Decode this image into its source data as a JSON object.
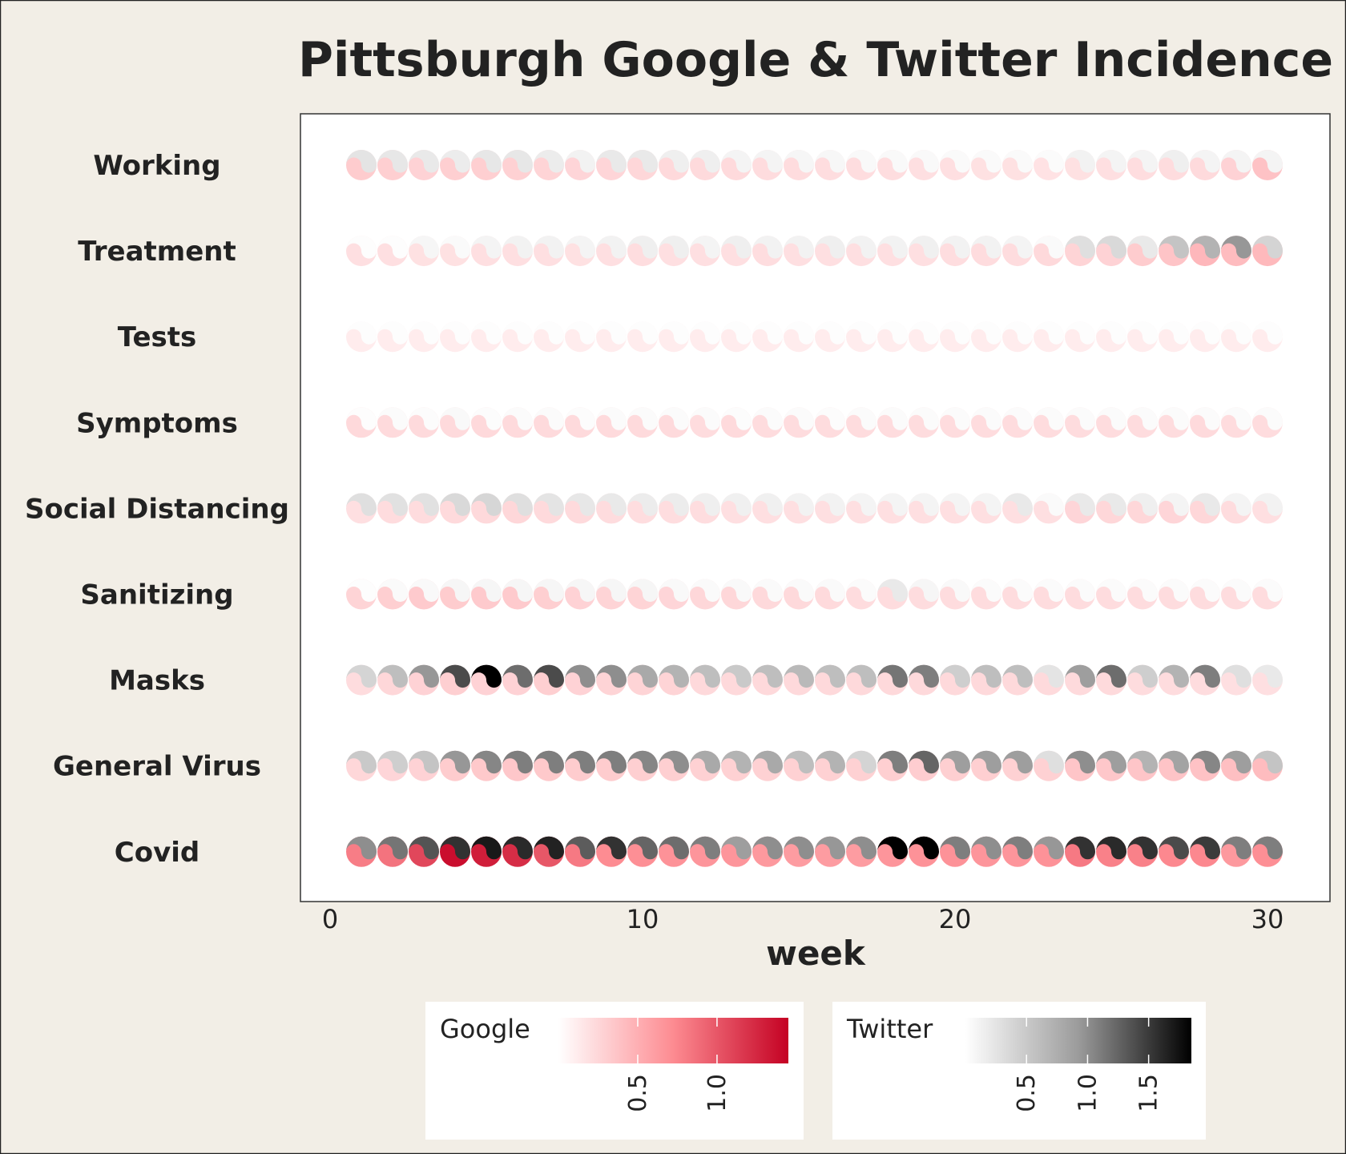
{
  "chart_data": {
    "type": "heatmap",
    "title": "Pittsburgh Google & Twitter Incidence",
    "xlabel": "week",
    "ylabel": "",
    "xlim": [
      0,
      32
    ],
    "x_ticks": [
      0,
      10,
      20,
      30
    ],
    "weeks": [
      1,
      2,
      3,
      4,
      5,
      6,
      7,
      8,
      9,
      10,
      11,
      12,
      13,
      14,
      15,
      16,
      17,
      18,
      19,
      20,
      21,
      22,
      23,
      24,
      25,
      26,
      27,
      28,
      29,
      30
    ],
    "categories": [
      "Working",
      "Treatment",
      "Tests",
      "Symptoms",
      "Social Distancing",
      "Sanitizing",
      "Masks",
      "General Virus",
      "Covid"
    ],
    "series": [
      {
        "name": "Google",
        "colors": [
          "#ffffff",
          "#fd8b91",
          "#c40123"
        ],
        "range": [
          0,
          1.45
        ],
        "ticks": [
          0.5,
          1.0
        ],
        "tick_labels": [
          "0.5",
          "1.0"
        ],
        "values": [
          [
            0.32,
            0.3,
            0.28,
            0.3,
            0.3,
            0.29,
            0.27,
            0.26,
            0.26,
            0.25,
            0.24,
            0.23,
            0.23,
            0.22,
            0.22,
            0.21,
            0.21,
            0.21,
            0.2,
            0.2,
            0.19,
            0.19,
            0.18,
            0.19,
            0.2,
            0.21,
            0.22,
            0.23,
            0.28,
            0.38
          ],
          [
            0.2,
            0.2,
            0.19,
            0.19,
            0.2,
            0.2,
            0.2,
            0.19,
            0.2,
            0.21,
            0.2,
            0.2,
            0.2,
            0.21,
            0.2,
            0.2,
            0.2,
            0.2,
            0.2,
            0.21,
            0.22,
            0.22,
            0.24,
            0.27,
            0.28,
            0.32,
            0.37,
            0.45,
            0.42,
            0.44
          ],
          [
            0.12,
            0.12,
            0.12,
            0.12,
            0.12,
            0.12,
            0.12,
            0.12,
            0.12,
            0.12,
            0.12,
            0.12,
            0.12,
            0.12,
            0.12,
            0.12,
            0.12,
            0.12,
            0.12,
            0.12,
            0.12,
            0.12,
            0.12,
            0.12,
            0.12,
            0.12,
            0.12,
            0.12,
            0.12,
            0.12
          ],
          [
            0.24,
            0.23,
            0.23,
            0.23,
            0.24,
            0.23,
            0.23,
            0.23,
            0.23,
            0.23,
            0.23,
            0.22,
            0.23,
            0.22,
            0.22,
            0.22,
            0.22,
            0.22,
            0.22,
            0.22,
            0.22,
            0.22,
            0.22,
            0.22,
            0.22,
            0.22,
            0.22,
            0.23,
            0.22,
            0.22
          ],
          [
            0.2,
            0.22,
            0.22,
            0.23,
            0.24,
            0.25,
            0.23,
            0.23,
            0.22,
            0.21,
            0.21,
            0.21,
            0.2,
            0.2,
            0.2,
            0.2,
            0.2,
            0.2,
            0.2,
            0.2,
            0.2,
            0.2,
            0.2,
            0.26,
            0.25,
            0.25,
            0.26,
            0.25,
            0.22,
            0.2
          ],
          [
            0.27,
            0.3,
            0.33,
            0.32,
            0.33,
            0.33,
            0.3,
            0.28,
            0.27,
            0.27,
            0.26,
            0.25,
            0.25,
            0.24,
            0.24,
            0.23,
            0.22,
            0.22,
            0.22,
            0.22,
            0.22,
            0.22,
            0.22,
            0.22,
            0.22,
            0.22,
            0.22,
            0.22,
            0.22,
            0.22
          ],
          [
            0.22,
            0.25,
            0.28,
            0.3,
            0.28,
            0.28,
            0.3,
            0.28,
            0.27,
            0.27,
            0.27,
            0.24,
            0.24,
            0.24,
            0.24,
            0.24,
            0.24,
            0.24,
            0.24,
            0.24,
            0.24,
            0.24,
            0.23,
            0.23,
            0.23,
            0.22,
            0.22,
            0.22,
            0.2,
            0.2
          ],
          [
            0.25,
            0.26,
            0.28,
            0.32,
            0.34,
            0.35,
            0.34,
            0.32,
            0.32,
            0.3,
            0.3,
            0.29,
            0.29,
            0.29,
            0.29,
            0.29,
            0.29,
            0.3,
            0.31,
            0.3,
            0.3,
            0.29,
            0.29,
            0.36,
            0.35,
            0.36,
            0.37,
            0.38,
            0.4,
            0.42
          ],
          [
            0.8,
            0.85,
            1.08,
            1.38,
            1.3,
            1.22,
            1.0,
            0.82,
            0.72,
            0.7,
            0.68,
            0.66,
            0.66,
            0.64,
            0.62,
            0.62,
            0.62,
            0.66,
            0.68,
            0.68,
            0.66,
            0.66,
            0.68,
            0.82,
            0.78,
            0.78,
            0.74,
            0.74,
            0.64,
            0.7
          ]
        ]
      },
      {
        "name": "Twitter",
        "colors": [
          "#ffffff",
          "#9b9b9b",
          "#000000"
        ],
        "range": [
          0,
          1.85
        ],
        "ticks": [
          0.5,
          1.0,
          1.5
        ],
        "tick_labels": [
          "0.5",
          "1.0",
          "1.5"
        ],
        "values": [
          [
            0.25,
            0.22,
            0.2,
            0.18,
            0.22,
            0.22,
            0.18,
            0.12,
            0.2,
            0.2,
            0.15,
            0.15,
            0.1,
            0.1,
            0.08,
            0.07,
            0.06,
            0.06,
            0.06,
            0.05,
            0.05,
            0.05,
            0.04,
            0.12,
            0.1,
            0.1,
            0.15,
            0.1,
            0.1,
            0.1
          ],
          [
            0.02,
            0.02,
            0.08,
            0.05,
            0.1,
            0.12,
            0.12,
            0.1,
            0.12,
            0.15,
            0.15,
            0.1,
            0.15,
            0.12,
            0.12,
            0.15,
            0.12,
            0.12,
            0.14,
            0.12,
            0.12,
            0.1,
            0.05,
            0.3,
            0.35,
            0.2,
            0.55,
            0.7,
            0.95,
            0.4
          ],
          [
            0.02,
            0.02,
            0.02,
            0.02,
            0.02,
            0.02,
            0.02,
            0.02,
            0.02,
            0.02,
            0.02,
            0.02,
            0.02,
            0.02,
            0.02,
            0.02,
            0.02,
            0.02,
            0.02,
            0.02,
            0.02,
            0.02,
            0.02,
            0.02,
            0.02,
            0.02,
            0.02,
            0.02,
            0.02,
            0.02
          ],
          [
            0.02,
            0.04,
            0.03,
            0.06,
            0.03,
            0.04,
            0.04,
            0.03,
            0.04,
            0.04,
            0.04,
            0.04,
            0.03,
            0.04,
            0.04,
            0.03,
            0.04,
            0.04,
            0.04,
            0.04,
            0.04,
            0.04,
            0.04,
            0.04,
            0.04,
            0.04,
            0.04,
            0.04,
            0.04,
            0.04
          ],
          [
            0.3,
            0.28,
            0.28,
            0.35,
            0.38,
            0.3,
            0.25,
            0.22,
            0.2,
            0.18,
            0.18,
            0.15,
            0.14,
            0.14,
            0.12,
            0.12,
            0.1,
            0.1,
            0.1,
            0.1,
            0.1,
            0.2,
            0.05,
            0.2,
            0.2,
            0.15,
            0.1,
            0.2,
            0.1,
            0.12
          ],
          [
            0.02,
            0.05,
            0.06,
            0.08,
            0.08,
            0.08,
            0.08,
            0.08,
            0.08,
            0.08,
            0.06,
            0.05,
            0.06,
            0.05,
            0.05,
            0.05,
            0.04,
            0.2,
            0.08,
            0.06,
            0.04,
            0.04,
            0.04,
            0.04,
            0.04,
            0.04,
            0.04,
            0.04,
            0.04,
            0.04
          ],
          [
            0.4,
            0.6,
            0.95,
            1.4,
            1.85,
            1.2,
            1.4,
            1.0,
            1.0,
            0.8,
            0.7,
            0.6,
            0.5,
            0.6,
            0.65,
            0.6,
            0.6,
            1.15,
            1.1,
            0.45,
            0.6,
            0.6,
            0.25,
            0.9,
            1.2,
            0.45,
            0.7,
            1.1,
            0.3,
            0.2
          ],
          [
            0.5,
            0.45,
            0.55,
            0.95,
            1.05,
            1.1,
            1.1,
            1.1,
            1.1,
            1.05,
            1.0,
            0.8,
            0.7,
            0.8,
            0.6,
            0.7,
            0.4,
            1.1,
            1.25,
            0.9,
            0.9,
            0.9,
            0.3,
            1.0,
            0.9,
            0.7,
            0.85,
            1.05,
            0.9,
            0.55
          ],
          [
            1.0,
            1.15,
            1.35,
            1.55,
            1.7,
            1.6,
            1.65,
            1.3,
            1.55,
            1.25,
            1.2,
            1.1,
            0.9,
            1.0,
            1.0,
            0.95,
            1.0,
            1.85,
            1.85,
            1.1,
            1.0,
            1.1,
            0.95,
            1.55,
            1.6,
            1.55,
            1.4,
            1.5,
            1.1,
            1.1
          ]
        ]
      }
    ],
    "legend": "bottom"
  }
}
